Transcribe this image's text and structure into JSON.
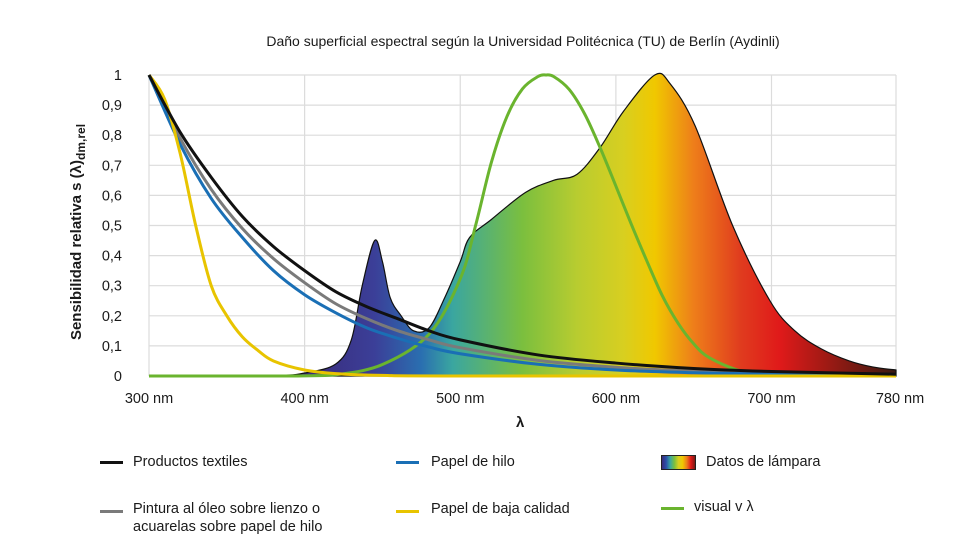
{
  "chart_data": {
    "type": "line",
    "title": "Daño superficial espectral según la Universidad Politécnica (TU) de Berlín (Aydinli)",
    "xlabel": "λ",
    "ylabel": "Sensibilidad relativa s (λ)",
    "ylabel_sub": "dm,rel",
    "xlim": [
      300,
      780
    ],
    "ylim": [
      0,
      1
    ],
    "x_ticks": [
      300,
      400,
      500,
      600,
      700,
      780
    ],
    "x_tick_labels": [
      "300 nm",
      "400 nm",
      "500 nm",
      "600 nm",
      "700 nm",
      "780 nm"
    ],
    "y_ticks": [
      0,
      0.1,
      0.2,
      0.3,
      0.4,
      0.5,
      0.6,
      0.7,
      0.8,
      0.9,
      1
    ],
    "y_tick_labels": [
      "0",
      "0,1",
      "0,2",
      "0,3",
      "0,4",
      "0,5",
      "0,6",
      "0,7",
      "0,8",
      "0,9",
      "1"
    ],
    "grid": true,
    "legend_placement": "bottom",
    "series": [
      {
        "name": "Datos de lámpara",
        "kind": "area",
        "color": "spectrum",
        "x": [
          300,
          380,
          400,
          420,
          430,
          437,
          445,
          450,
          455,
          462,
          470,
          480,
          490,
          500,
          506,
          520,
          542,
          560,
          575,
          590,
          605,
          625,
          635,
          651,
          675,
          699,
          715,
          732,
          750,
          765,
          780
        ],
        "y": [
          0,
          0.002,
          0.01,
          0.04,
          0.12,
          0.3,
          0.45,
          0.38,
          0.26,
          0.2,
          0.15,
          0.16,
          0.26,
          0.38,
          0.46,
          0.52,
          0.61,
          0.65,
          0.67,
          0.76,
          0.88,
          1.0,
          0.97,
          0.83,
          0.5,
          0.25,
          0.15,
          0.09,
          0.05,
          0.03,
          0.02
        ]
      },
      {
        "name": "visual v λ",
        "color": "#6ab42e",
        "x": [
          300,
          380,
          400,
          420,
          450,
          480,
          500,
          510,
          520,
          530,
          540,
          550,
          555,
          560,
          570,
          580,
          590,
          600,
          610,
          620,
          630,
          640,
          650,
          660,
          680,
          700,
          720,
          780
        ],
        "y": [
          0,
          0.0001,
          0.0004,
          0.004,
          0.038,
          0.139,
          0.323,
          0.503,
          0.71,
          0.862,
          0.954,
          0.995,
          1,
          0.995,
          0.952,
          0.87,
          0.757,
          0.631,
          0.503,
          0.381,
          0.265,
          0.175,
          0.107,
          0.061,
          0.017,
          0.004,
          0.001,
          0
        ]
      },
      {
        "name": "Pintura al óleo sobre lienzo o acuarelas sobre papel de hilo",
        "color": "#7a7a7a",
        "x": [
          300,
          320,
          340,
          360,
          380,
          400,
          420,
          440,
          460,
          480,
          500,
          550,
          600,
          650,
          700,
          780
        ],
        "y": [
          1,
          0.79,
          0.62,
          0.49,
          0.39,
          0.31,
          0.24,
          0.19,
          0.15,
          0.12,
          0.094,
          0.052,
          0.029,
          0.016,
          0.009,
          0.004
        ]
      },
      {
        "name": "Papel de hilo",
        "color": "#1a6fb5",
        "x": [
          300,
          320,
          340,
          360,
          380,
          400,
          420,
          440,
          460,
          480,
          500,
          550,
          600,
          650,
          700,
          780
        ],
        "y": [
          1,
          0.77,
          0.59,
          0.46,
          0.35,
          0.27,
          0.21,
          0.16,
          0.125,
          0.096,
          0.074,
          0.039,
          0.02,
          0.011,
          0.006,
          0.002
        ]
      },
      {
        "name": "Papel de baja calidad",
        "color": "#e8c400",
        "x": [
          300,
          310,
          320,
          330,
          340,
          350,
          360,
          370,
          380,
          400,
          420,
          450,
          500,
          780
        ],
        "y": [
          1,
          0.92,
          0.74,
          0.5,
          0.3,
          0.2,
          0.13,
          0.085,
          0.05,
          0.02,
          0.008,
          0.002,
          0,
          0
        ]
      },
      {
        "name": "Productos textiles",
        "color": "#111111",
        "x": [
          300,
          320,
          340,
          360,
          380,
          400,
          420,
          440,
          460,
          480,
          500,
          550,
          600,
          650,
          700,
          780
        ],
        "y": [
          1,
          0.81,
          0.66,
          0.53,
          0.43,
          0.35,
          0.28,
          0.23,
          0.19,
          0.15,
          0.12,
          0.07,
          0.043,
          0.025,
          0.015,
          0.006
        ]
      }
    ],
    "spectrum_colors": [
      {
        "nm": 400,
        "color": "#3a2a7a"
      },
      {
        "nm": 445,
        "color": "#3b3f98"
      },
      {
        "nm": 475,
        "color": "#2a6fb0"
      },
      {
        "nm": 495,
        "color": "#3aa6a0"
      },
      {
        "nm": 540,
        "color": "#7bbf3e"
      },
      {
        "nm": 575,
        "color": "#b8cc30"
      },
      {
        "nm": 605,
        "color": "#d8cf20"
      },
      {
        "nm": 625,
        "color": "#f0c800"
      },
      {
        "nm": 650,
        "color": "#ee7e1a"
      },
      {
        "nm": 680,
        "color": "#e03c1e"
      },
      {
        "nm": 705,
        "color": "#e01a1a"
      },
      {
        "nm": 735,
        "color": "#a01a14"
      },
      {
        "nm": 780,
        "color": "#3a1a10"
      }
    ]
  },
  "legend": [
    {
      "label": "Productos textiles",
      "color": "#111111"
    },
    {
      "label": "Papel de hilo",
      "color": "#1a6fb5"
    },
    {
      "label": "Datos de lámpara",
      "color": "spectrum"
    },
    {
      "label_line1": "Pintura al óleo sobre lienzo o",
      "label_line2": "acuarelas sobre papel de hilo",
      "color": "#7a7a7a"
    },
    {
      "label": "Papel de baja calidad",
      "color": "#e8c400"
    },
    {
      "label": "visual v λ",
      "color": "#6ab42e"
    }
  ]
}
